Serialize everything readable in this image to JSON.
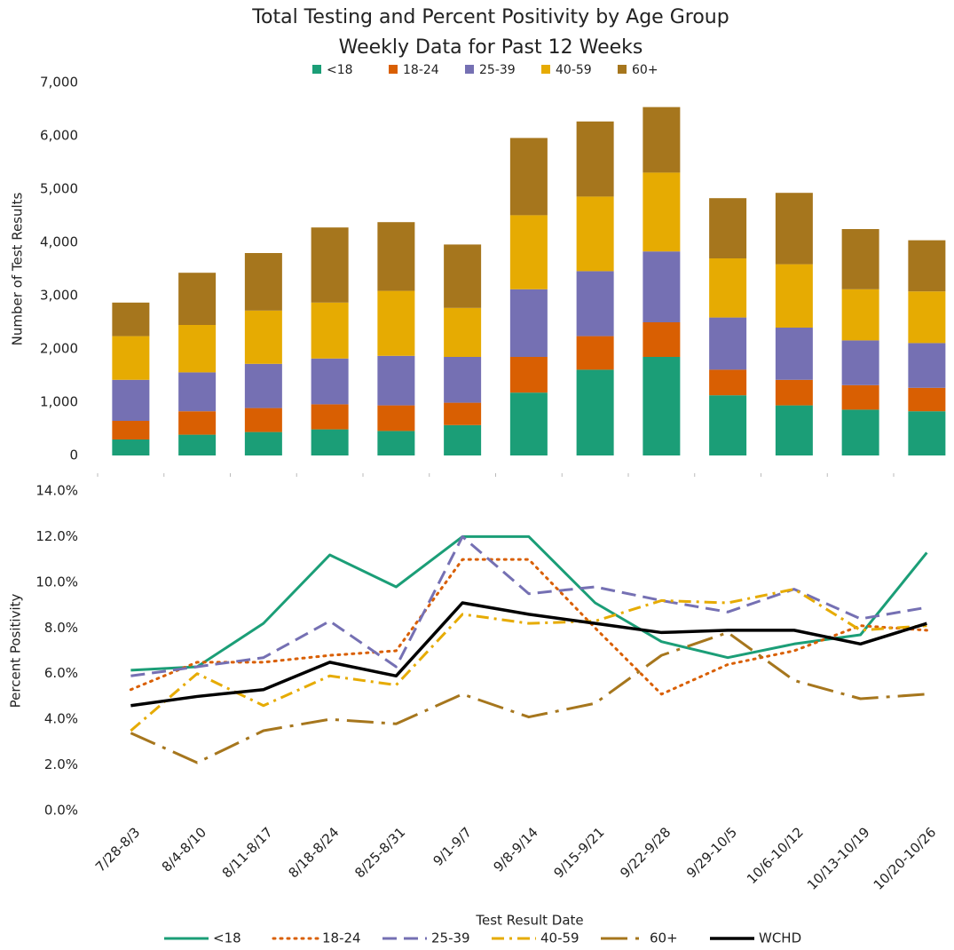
{
  "chart_data": [
    {
      "type": "stacked_bar",
      "title": "Total Testing and Percent Positivity by Age Group",
      "subtitle": "Weekly Data for Past 12 Weeks",
      "y_label": "Number of Test Results",
      "legend": "top",
      "grid": false,
      "ylim": [
        0,
        7000
      ],
      "yticks": [
        0,
        {
          "value": 1000,
          "label": "1,000"
        },
        {
          "value": 2000,
          "label": "2,000"
        },
        {
          "value": 3000,
          "label": "3,000"
        },
        {
          "value": 4000,
          "label": "4,000"
        },
        {
          "value": 5000,
          "label": "5,000"
        },
        {
          "value": 6000,
          "label": "6,000"
        },
        {
          "value": 7000,
          "label": "7,000"
        }
      ],
      "series": [
        {
          "name": "<18",
          "color": "#1b9e77",
          "values": [
            300,
            390,
            440,
            490,
            460,
            570,
            1180,
            1610,
            1850,
            1130,
            940,
            860,
            830
          ]
        },
        {
          "name": "18-24",
          "color": "#d95f02",
          "values": [
            350,
            440,
            450,
            470,
            480,
            420,
            670,
            630,
            650,
            480,
            480,
            460,
            440
          ]
        },
        {
          "name": "25-39",
          "color": "#7570b3",
          "values": [
            770,
            730,
            830,
            860,
            930,
            860,
            1270,
            1220,
            1330,
            980,
            980,
            840,
            840
          ]
        },
        {
          "name": "40-59",
          "color": "#e6ab02",
          "values": [
            820,
            890,
            1000,
            1050,
            1220,
            920,
            1390,
            1400,
            1480,
            1110,
            1190,
            960,
            970
          ]
        },
        {
          "name": "60+",
          "color": "#a6761d",
          "values": [
            630,
            980,
            1080,
            1410,
            1290,
            1190,
            1450,
            1410,
            1230,
            1130,
            1340,
            1130,
            960
          ]
        }
      ]
    },
    {
      "type": "line",
      "x_label": "Test Result Date",
      "y_label": "Percent Positivity",
      "legend": "bottom",
      "grid": false,
      "categories": [
        "7/28-8/3",
        "8/4-8/10",
        "8/11-8/17",
        "8/18-8/24",
        "8/25-8/31",
        "9/1-9/7",
        "9/8-9/14",
        "9/15-9/21",
        "9/22-9/28",
        "9/29-10/5",
        "10/6-10/12",
        "10/13-10/19",
        "10/20-10/26"
      ],
      "ylim": [
        0,
        14
      ],
      "yticks": [
        {
          "value": 0,
          "label": "0.0%"
        },
        {
          "value": 2,
          "label": "2.0%"
        },
        {
          "value": 4,
          "label": "4.0%"
        },
        {
          "value": 6,
          "label": "6.0%"
        },
        {
          "value": 8,
          "label": "8.0%"
        },
        {
          "value": 10,
          "label": "10.0%"
        },
        {
          "value": 12,
          "label": "12.0%"
        },
        {
          "value": 14,
          "label": "14.0%"
        }
      ],
      "series": [
        {
          "name": "<18",
          "color": "#1b9e77",
          "dash": "solid",
          "values": [
            6.15,
            6.3,
            8.2,
            11.2,
            9.8,
            12.0,
            12.0,
            9.1,
            7.4,
            6.7,
            7.3,
            7.7,
            11.3
          ]
        },
        {
          "name": "18-24",
          "color": "#d95f02",
          "dash": "dotted",
          "values": [
            5.3,
            6.5,
            6.5,
            6.8,
            7.0,
            11.0,
            11.0,
            8.0,
            5.1,
            6.4,
            7.0,
            8.1,
            7.9
          ]
        },
        {
          "name": "25-39",
          "color": "#7570b3",
          "dash": "dashed",
          "values": [
            5.9,
            6.3,
            6.7,
            8.3,
            6.3,
            12.0,
            9.5,
            9.8,
            9.2,
            8.7,
            9.7,
            8.4,
            8.9
          ]
        },
        {
          "name": "40-59",
          "color": "#e6ab02",
          "dash": "dashdot",
          "values": [
            3.5,
            6.0,
            4.6,
            5.9,
            5.5,
            8.6,
            8.2,
            8.3,
            9.2,
            9.1,
            9.7,
            7.9,
            8.1
          ]
        },
        {
          "name": "60+",
          "color": "#a6761d",
          "dash": "longdashdot",
          "values": [
            3.4,
            2.1,
            3.5,
            4.0,
            3.8,
            5.1,
            4.1,
            4.7,
            6.8,
            7.8,
            5.7,
            4.9,
            5.1
          ]
        },
        {
          "name": "WCHD",
          "color": "#000000",
          "dash": "solid",
          "values": [
            4.6,
            5.0,
            5.3,
            6.5,
            5.9,
            9.1,
            8.6,
            8.2,
            7.8,
            7.9,
            7.9,
            7.3,
            8.2
          ]
        }
      ]
    }
  ]
}
